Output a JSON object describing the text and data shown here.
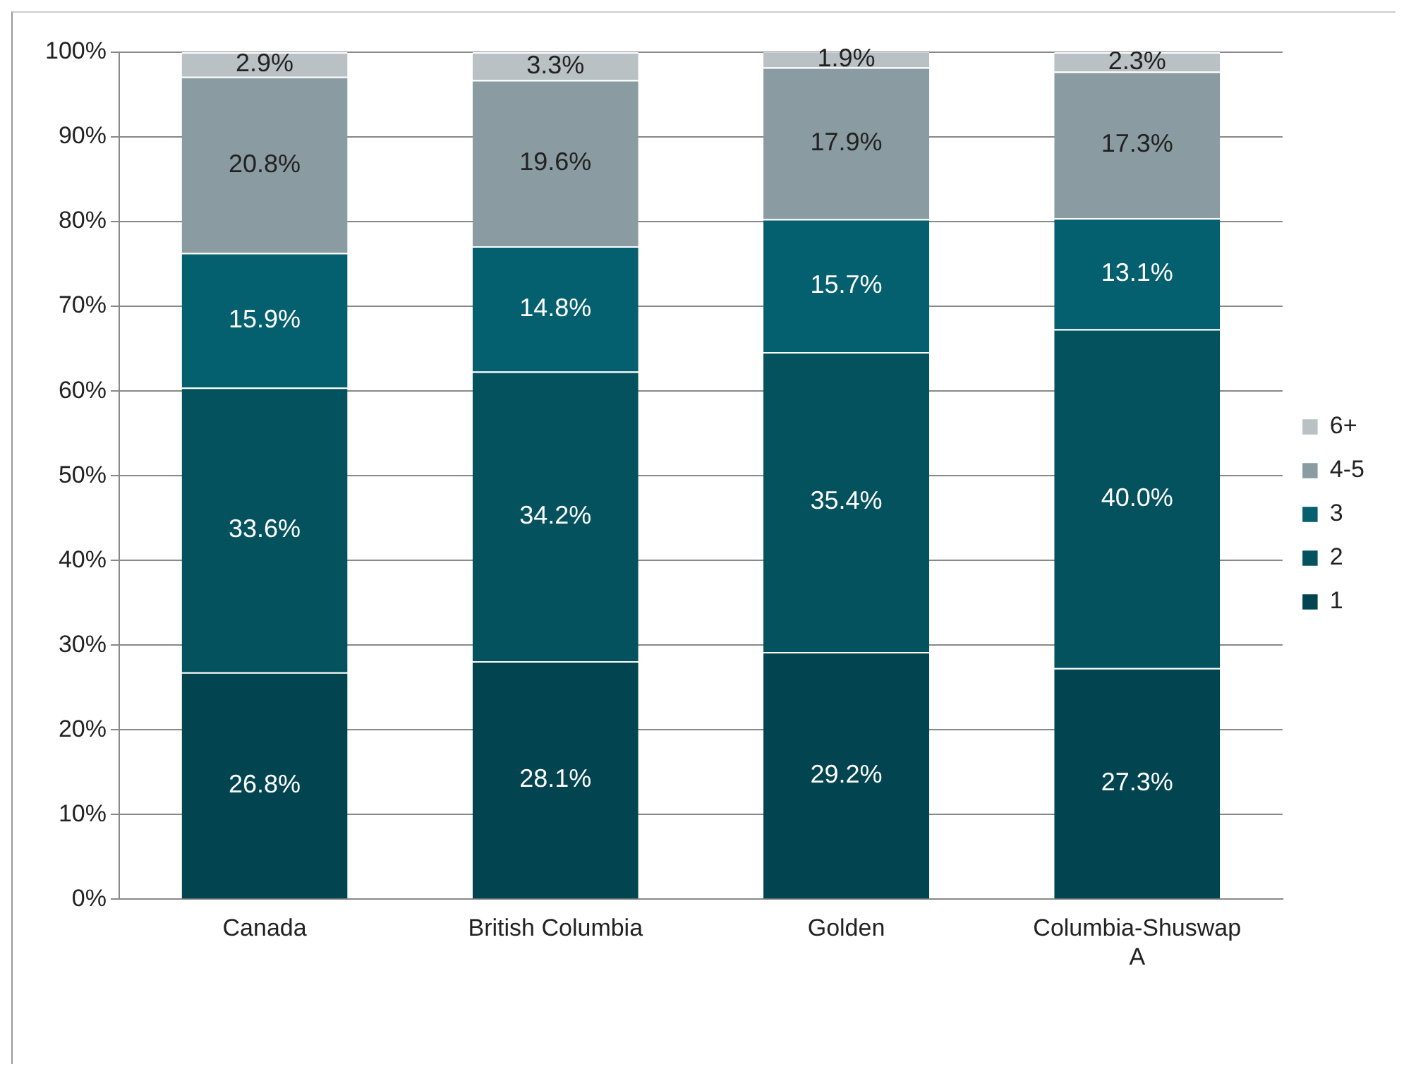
{
  "chart_data": {
    "type": "bar",
    "stacked": true,
    "categories": [
      "Canada",
      "British Columbia",
      "Golden",
      "Columbia-Shuswap A"
    ],
    "series": [
      {
        "name": "1",
        "color": "#024450",
        "values": [
          26.8,
          28.1,
          29.2,
          27.3
        ],
        "value_labels": [
          "26.8%",
          "28.1%",
          "29.2%",
          "27.3%"
        ]
      },
      {
        "name": "2",
        "color": "#03525e",
        "values": [
          33.6,
          34.2,
          35.4,
          40.0
        ],
        "value_labels": [
          "33.6%",
          "34.2%",
          "35.4%",
          "40.0%"
        ]
      },
      {
        "name": "3",
        "color": "#045f6e",
        "values": [
          15.9,
          14.8,
          15.7,
          13.1
        ],
        "value_labels": [
          "15.9%",
          "14.8%",
          "15.7%",
          "13.1%"
        ]
      },
      {
        "name": "4-5",
        "color": "#8a9ca1",
        "values": [
          20.8,
          19.6,
          17.9,
          17.3
        ],
        "value_labels": [
          "20.8%",
          "19.6%",
          "17.9%",
          "17.3%"
        ]
      },
      {
        "name": "6+",
        "color": "#b9c1c4",
        "values": [
          2.9,
          3.3,
          1.9,
          2.3
        ],
        "value_labels": [
          "2.9%",
          "3.3%",
          "1.9%",
          "2.3%"
        ]
      }
    ],
    "ylim": [
      0,
      100
    ],
    "yticks": [
      {
        "value": 0,
        "label": "0%"
      },
      {
        "value": 10,
        "label": "10%"
      },
      {
        "value": 20,
        "label": "20%"
      },
      {
        "value": 30,
        "label": "30%"
      },
      {
        "value": 40,
        "label": "40%"
      },
      {
        "value": 50,
        "label": "50%"
      },
      {
        "value": 60,
        "label": "60%"
      },
      {
        "value": 70,
        "label": "70%"
      },
      {
        "value": 80,
        "label": "80%"
      },
      {
        "value": 90,
        "label": "90%"
      },
      {
        "value": 100,
        "label": "100%"
      }
    ],
    "grid": "y",
    "legend": "right"
  }
}
